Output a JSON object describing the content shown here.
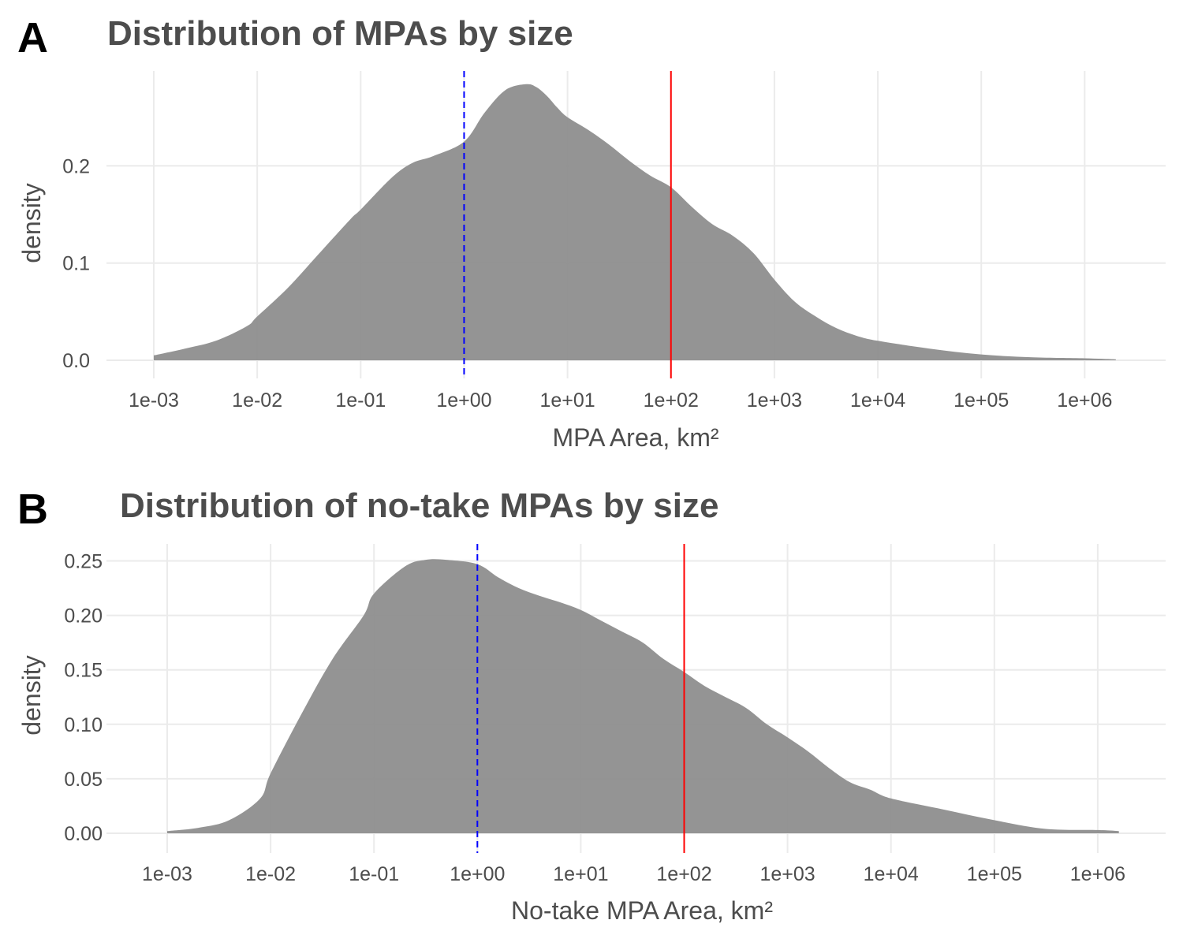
{
  "chart_data": [
    {
      "type": "area",
      "panel_label": "A",
      "title": "Distribution of MPAs by size",
      "xlabel": "MPA Area, km²",
      "ylabel": "density",
      "x_scale": "log10",
      "x_ticks": [
        "1e-03",
        "1e-02",
        "1e-01",
        "1e+00",
        "1e+01",
        "1e+02",
        "1e+03",
        "1e+04",
        "1e+05",
        "1e+06"
      ],
      "y_ticks": [
        "0.0",
        "0.1",
        "0.2"
      ],
      "ylim": [
        0,
        0.29
      ],
      "grid": true,
      "fill_color": "#8c8c8c",
      "vlines": [
        {
          "x": 1,
          "color": "#0000ff",
          "style": "dashed"
        },
        {
          "x": 100,
          "color": "#ff0000",
          "style": "solid"
        }
      ],
      "x": [
        0.001,
        0.002,
        0.00398,
        0.00794,
        0.01,
        0.02,
        0.0398,
        0.0794,
        0.1,
        0.2,
        0.316,
        0.5,
        1,
        1.585,
        2.512,
        3.98,
        5,
        6.31,
        7.94,
        10,
        15.85,
        25.1,
        39.8,
        63.1,
        100,
        158.5,
        251,
        398,
        631,
        1000,
        1585,
        2512,
        3981,
        6310,
        10000,
        31620,
        100000,
        316200,
        1000000,
        2000000
      ],
      "values": [
        0.005,
        0.012,
        0.02,
        0.035,
        0.045,
        0.075,
        0.11,
        0.145,
        0.155,
        0.188,
        0.203,
        0.21,
        0.225,
        0.255,
        0.278,
        0.284,
        0.281,
        0.272,
        0.26,
        0.25,
        0.237,
        0.222,
        0.205,
        0.19,
        0.178,
        0.158,
        0.14,
        0.128,
        0.11,
        0.083,
        0.06,
        0.045,
        0.033,
        0.025,
        0.02,
        0.012,
        0.006,
        0.003,
        0.002,
        0.001
      ]
    },
    {
      "type": "area",
      "panel_label": "B",
      "title": "Distribution of no-take MPAs by size",
      "xlabel": "No-take MPA Area, km²",
      "ylabel": "density",
      "x_scale": "log10",
      "x_ticks": [
        "1e-03",
        "1e-02",
        "1e-01",
        "1e+00",
        "1e+01",
        "1e+02",
        "1e+03",
        "1e+04",
        "1e+05",
        "1e+06"
      ],
      "y_ticks": [
        "0.00",
        "0.05",
        "0.10",
        "0.15",
        "0.20",
        "0.25"
      ],
      "ylim": [
        0,
        0.265
      ],
      "grid": true,
      "fill_color": "#8c8c8c",
      "vlines": [
        {
          "x": 1,
          "color": "#0000ff",
          "style": "dashed"
        },
        {
          "x": 100,
          "color": "#ff0000",
          "style": "solid"
        }
      ],
      "x": [
        0.001,
        0.002,
        0.00398,
        0.00794,
        0.01,
        0.02,
        0.0398,
        0.0794,
        0.1,
        0.2,
        0.316,
        0.5,
        1,
        1.585,
        2.512,
        3.98,
        6.31,
        10,
        15.85,
        25.1,
        39.8,
        63.1,
        100,
        158.5,
        251,
        398,
        631,
        1000,
        1585,
        2512,
        3981,
        6310,
        10000,
        31620,
        100000,
        316200,
        1000000,
        1600000
      ],
      "values": [
        0.002,
        0.005,
        0.012,
        0.032,
        0.055,
        0.11,
        0.16,
        0.2,
        0.22,
        0.245,
        0.251,
        0.251,
        0.247,
        0.235,
        0.225,
        0.218,
        0.212,
        0.205,
        0.195,
        0.185,
        0.175,
        0.16,
        0.148,
        0.135,
        0.125,
        0.115,
        0.1,
        0.088,
        0.075,
        0.06,
        0.047,
        0.04,
        0.032,
        0.022,
        0.012,
        0.004,
        0.003,
        0.002
      ]
    }
  ]
}
